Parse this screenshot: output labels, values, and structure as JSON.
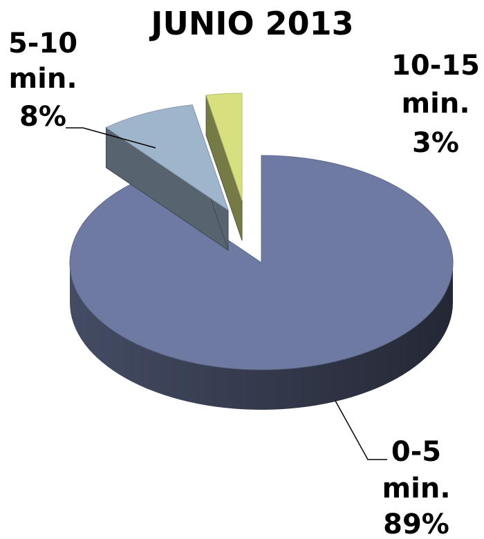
{
  "chart_data": {
    "type": "pie",
    "title": "JUNIO 2013",
    "slices": [
      {
        "label": "0-5 min.",
        "value": 89,
        "percent_label": "89%",
        "color": "#6e7aa2"
      },
      {
        "label": "5-10 min.",
        "value": 8,
        "percent_label": "8%",
        "color": "#9fb5cc"
      },
      {
        "label": "10-15 min.",
        "value": 3,
        "percent_label": "3%",
        "color": "#d7df7f"
      }
    ],
    "style": "3d-exploded",
    "legend": "none"
  }
}
